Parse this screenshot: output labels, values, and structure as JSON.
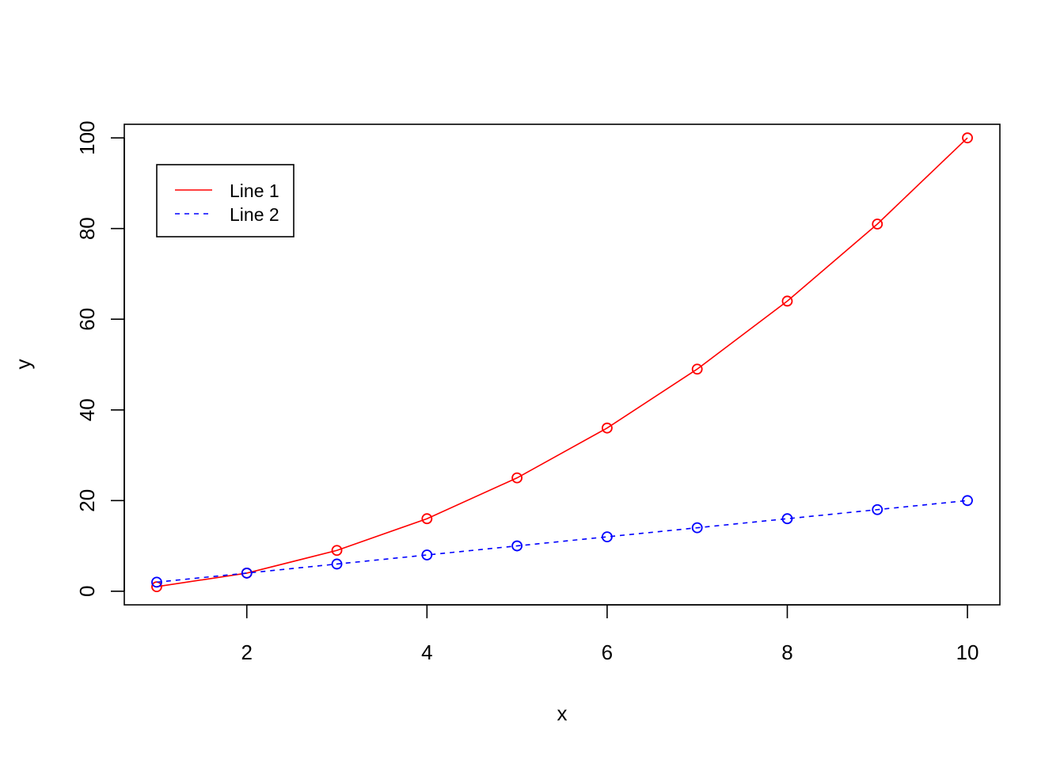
{
  "chart_data": {
    "type": "line",
    "title": "",
    "xlabel": "x",
    "ylabel": "y",
    "x": [
      1,
      2,
      3,
      4,
      5,
      6,
      7,
      8,
      9,
      10
    ],
    "xlim": [
      0.64,
      10.36
    ],
    "ylim": [
      -3,
      103
    ],
    "x_ticks": [
      2,
      4,
      6,
      8,
      10
    ],
    "y_ticks": [
      0,
      20,
      40,
      60,
      80,
      100
    ],
    "grid": false,
    "legend_position": "top-left",
    "series": [
      {
        "name": "Line 1",
        "values": [
          1,
          4,
          9,
          16,
          25,
          36,
          49,
          64,
          81,
          100
        ],
        "color": "#ff0000",
        "line_style": "solid",
        "marker": "open-circle"
      },
      {
        "name": "Line 2",
        "values": [
          2,
          4,
          6,
          8,
          10,
          12,
          14,
          16,
          18,
          20
        ],
        "color": "#0000ff",
        "line_style": "dashed",
        "marker": "open-circle"
      }
    ]
  }
}
